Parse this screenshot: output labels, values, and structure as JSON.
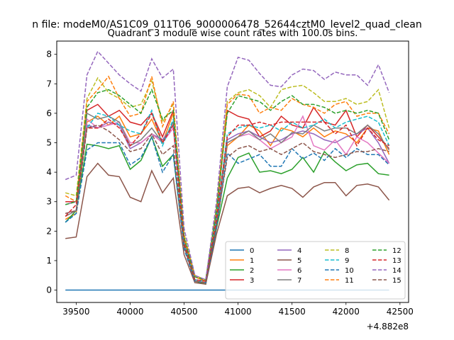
{
  "chart_data": {
    "type": "line",
    "suptitle": "n file: modeM0/AS1C09_011T06_9000006478_52644cztM0_level2_quad_clean",
    "title": "Quadrant 3 module wise count rates with 100.0s bins.",
    "xlabel": "",
    "ylabel": "",
    "offset_label": "+4.882e8",
    "xlim": [
      39320,
      42580
    ],
    "ylim": [
      -0.42,
      8.45
    ],
    "xticks": [
      39500,
      40000,
      40500,
      41000,
      41500,
      42000,
      42500
    ],
    "yticks": [
      0,
      1,
      2,
      3,
      4,
      5,
      6,
      7,
      8
    ],
    "grid": false,
    "legend": {
      "placement": "lower-right",
      "ncol": 4
    },
    "x": [
      39400,
      39500,
      39600,
      39700,
      39800,
      39900,
      40000,
      40100,
      40200,
      40300,
      40400,
      40500,
      40600,
      40700,
      40800,
      40900,
      41000,
      41100,
      41200,
      41300,
      41400,
      41500,
      41600,
      41700,
      41800,
      41900,
      42000,
      42100,
      42200,
      42300,
      42400
    ],
    "series": [
      {
        "name": "0",
        "color": "#1f77b4",
        "dash": "solid",
        "values": [
          0,
          0,
          0,
          0,
          0,
          0,
          0,
          0,
          0,
          0,
          0,
          0,
          0,
          0,
          0,
          0,
          0,
          0,
          0,
          0,
          0,
          0,
          0,
          0,
          0,
          0,
          0,
          0,
          0,
          0,
          0
        ]
      },
      {
        "name": "1",
        "color": "#ff7f0e",
        "dash": "solid",
        "values": [
          2.4,
          2.6,
          5.7,
          5.9,
          5.6,
          5.9,
          5.2,
          5.3,
          5.8,
          5.0,
          6.0,
          1.7,
          0.45,
          0.3,
          2.4,
          4.9,
          5.2,
          5.6,
          5.4,
          4.9,
          5.5,
          5.4,
          5.2,
          5.5,
          5.2,
          5.4,
          5.3,
          5.0,
          5.5,
          5.4,
          4.6
        ]
      },
      {
        "name": "2",
        "color": "#2ca02c",
        "dash": "solid",
        "values": [
          2.3,
          2.7,
          4.95,
          4.9,
          4.8,
          4.9,
          4.1,
          4.4,
          5.2,
          4.2,
          4.6,
          1.5,
          0.3,
          0.2,
          2.1,
          3.8,
          4.5,
          4.65,
          4.0,
          4.05,
          3.95,
          4.1,
          4.5,
          4.0,
          4.7,
          4.35,
          4.05,
          4.25,
          4.3,
          3.95,
          3.9
        ]
      },
      {
        "name": "3",
        "color": "#d62728",
        "dash": "solid",
        "values": [
          3.0,
          3.0,
          6.1,
          6.3,
          5.9,
          6.1,
          5.7,
          5.6,
          6.0,
          5.2,
          6.1,
          1.8,
          0.35,
          0.3,
          2.6,
          6.1,
          5.9,
          5.8,
          5.2,
          5.4,
          5.9,
          5.6,
          5.5,
          6.2,
          5.7,
          5.6,
          6.1,
          5.2,
          5.6,
          5.2,
          4.8
        ]
      },
      {
        "name": "4",
        "color": "#9467bd",
        "dash": "solid",
        "values": [
          2.9,
          3.0,
          5.6,
          5.5,
          5.7,
          5.6,
          4.8,
          5.0,
          5.3,
          5.1,
          5.6,
          1.6,
          0.35,
          0.3,
          2.5,
          5.1,
          5.3,
          5.4,
          5.2,
          5.0,
          5.1,
          5.3,
          5.4,
          5.3,
          5.1,
          5.0,
          5.2,
          5.3,
          5.5,
          5.0,
          4.3
        ]
      },
      {
        "name": "5",
        "color": "#8c564b",
        "dash": "solid",
        "values": [
          1.75,
          1.8,
          3.85,
          4.3,
          3.9,
          3.85,
          3.15,
          3.0,
          4.05,
          3.3,
          3.8,
          1.2,
          0.25,
          0.2,
          1.9,
          3.2,
          3.45,
          3.5,
          3.3,
          3.45,
          3.55,
          3.45,
          3.15,
          3.5,
          3.65,
          3.65,
          3.2,
          3.55,
          3.6,
          3.5,
          3.05
        ]
      },
      {
        "name": "6",
        "color": "#e377c2",
        "dash": "solid",
        "values": [
          2.6,
          2.7,
          5.8,
          5.5,
          5.6,
          5.7,
          5.0,
          5.0,
          5.3,
          5.0,
          5.5,
          1.6,
          0.3,
          0.25,
          2.3,
          5.0,
          5.2,
          5.3,
          5.1,
          4.8,
          5.0,
          5.2,
          5.9,
          4.9,
          4.75,
          5.1,
          4.6,
          5.2,
          5.0,
          4.65,
          4.3
        ]
      },
      {
        "name": "7",
        "color": "#7f7f7f",
        "dash": "solid",
        "values": [
          2.5,
          2.7,
          6.0,
          5.8,
          5.9,
          5.7,
          4.9,
          5.1,
          5.5,
          5.0,
          5.7,
          1.5,
          0.3,
          0.25,
          2.3,
          5.0,
          5.2,
          5.4,
          5.1,
          5.3,
          5.0,
          5.35,
          5.3,
          5.6,
          5.4,
          5.5,
          5.5,
          5.3,
          5.6,
          5.3,
          4.75
        ]
      },
      {
        "name": "8",
        "color": "#bcbd22",
        "dash": "dashed",
        "values": [
          3.3,
          3.2,
          6.5,
          7.2,
          6.7,
          6.5,
          6.2,
          6.3,
          7.1,
          5.7,
          6.3,
          1.9,
          0.5,
          0.35,
          2.8,
          6.4,
          6.7,
          6.8,
          6.6,
          6.2,
          6.8,
          6.9,
          6.95,
          6.7,
          6.4,
          6.4,
          6.5,
          6.3,
          6.4,
          6.8,
          5.5
        ]
      },
      {
        "name": "9",
        "color": "#17becf",
        "dash": "dashed",
        "values": [
          2.3,
          2.6,
          5.5,
          6.0,
          5.9,
          5.6,
          5.4,
          5.3,
          6.1,
          4.9,
          5.8,
          1.6,
          0.35,
          0.3,
          2.4,
          5.3,
          5.5,
          5.6,
          5.5,
          5.6,
          5.4,
          5.7,
          5.5,
          5.6,
          5.8,
          5.5,
          5.7,
          5.8,
          5.9,
          5.7,
          4.9
        ]
      },
      {
        "name": "10",
        "color": "#1f77b4",
        "dash": "dashed",
        "values": [
          2.3,
          2.6,
          4.75,
          5.0,
          5.0,
          5.0,
          4.25,
          4.5,
          5.2,
          4.0,
          4.6,
          1.4,
          0.3,
          0.25,
          2.1,
          4.65,
          4.3,
          4.45,
          4.6,
          4.2,
          4.2,
          4.8,
          4.45,
          4.65,
          4.4,
          4.8,
          4.5,
          4.8,
          4.6,
          4.6,
          4.25
        ]
      },
      {
        "name": "11",
        "color": "#ff7f0e",
        "dash": "dashed",
        "values": [
          3.2,
          3.0,
          6.4,
          6.8,
          7.25,
          6.5,
          5.9,
          6.0,
          7.25,
          5.55,
          6.4,
          1.8,
          0.45,
          0.3,
          2.7,
          6.3,
          6.65,
          6.6,
          6.0,
          6.2,
          6.1,
          6.5,
          6.3,
          6.2,
          6.0,
          6.3,
          6.4,
          5.9,
          6.0,
          6.0,
          5.3
        ]
      },
      {
        "name": "12",
        "color": "#2ca02c",
        "dash": "dashed",
        "values": [
          2.9,
          3.0,
          6.2,
          6.7,
          6.8,
          6.6,
          6.3,
          6.0,
          6.8,
          5.8,
          6.1,
          1.8,
          0.45,
          0.35,
          2.7,
          6.0,
          6.6,
          6.5,
          6.4,
          6.1,
          6.4,
          6.6,
          6.3,
          6.3,
          6.2,
          6.0,
          6.1,
          6.0,
          6.1,
          6.0,
          5.1
        ]
      },
      {
        "name": "13",
        "color": "#d62728",
        "dash": "dashed",
        "values": [
          2.5,
          2.9,
          5.5,
          5.5,
          5.8,
          5.5,
          4.9,
          5.3,
          6.0,
          5.0,
          5.6,
          1.6,
          0.35,
          0.3,
          2.4,
          5.2,
          5.6,
          5.6,
          5.7,
          5.6,
          5.7,
          5.7,
          5.7,
          5.7,
          5.7,
          5.3,
          5.6,
          4.9,
          5.5,
          5.1,
          4.9
        ]
      },
      {
        "name": "14",
        "color": "#9467bd",
        "dash": "dashed",
        "values": [
          3.75,
          3.9,
          7.3,
          8.1,
          7.7,
          7.3,
          7.0,
          6.75,
          7.85,
          7.2,
          7.5,
          2.1,
          0.5,
          0.35,
          3.0,
          6.9,
          7.9,
          7.8,
          7.35,
          6.95,
          6.9,
          7.3,
          7.5,
          7.45,
          7.15,
          7.4,
          7.3,
          7.3,
          6.95,
          7.65,
          6.7
        ]
      },
      {
        "name": "15",
        "color": "#8c564b",
        "dash": "dashed",
        "values": [
          2.6,
          2.7,
          5.5,
          5.6,
          5.4,
          5.1,
          4.7,
          4.8,
          5.3,
          4.6,
          4.9,
          1.5,
          0.3,
          0.25,
          2.2,
          4.5,
          4.8,
          4.9,
          4.7,
          4.8,
          4.6,
          4.8,
          5.0,
          4.7,
          4.6,
          4.5,
          4.6,
          4.7,
          4.7,
          4.8,
          4.7
        ]
      }
    ]
  }
}
